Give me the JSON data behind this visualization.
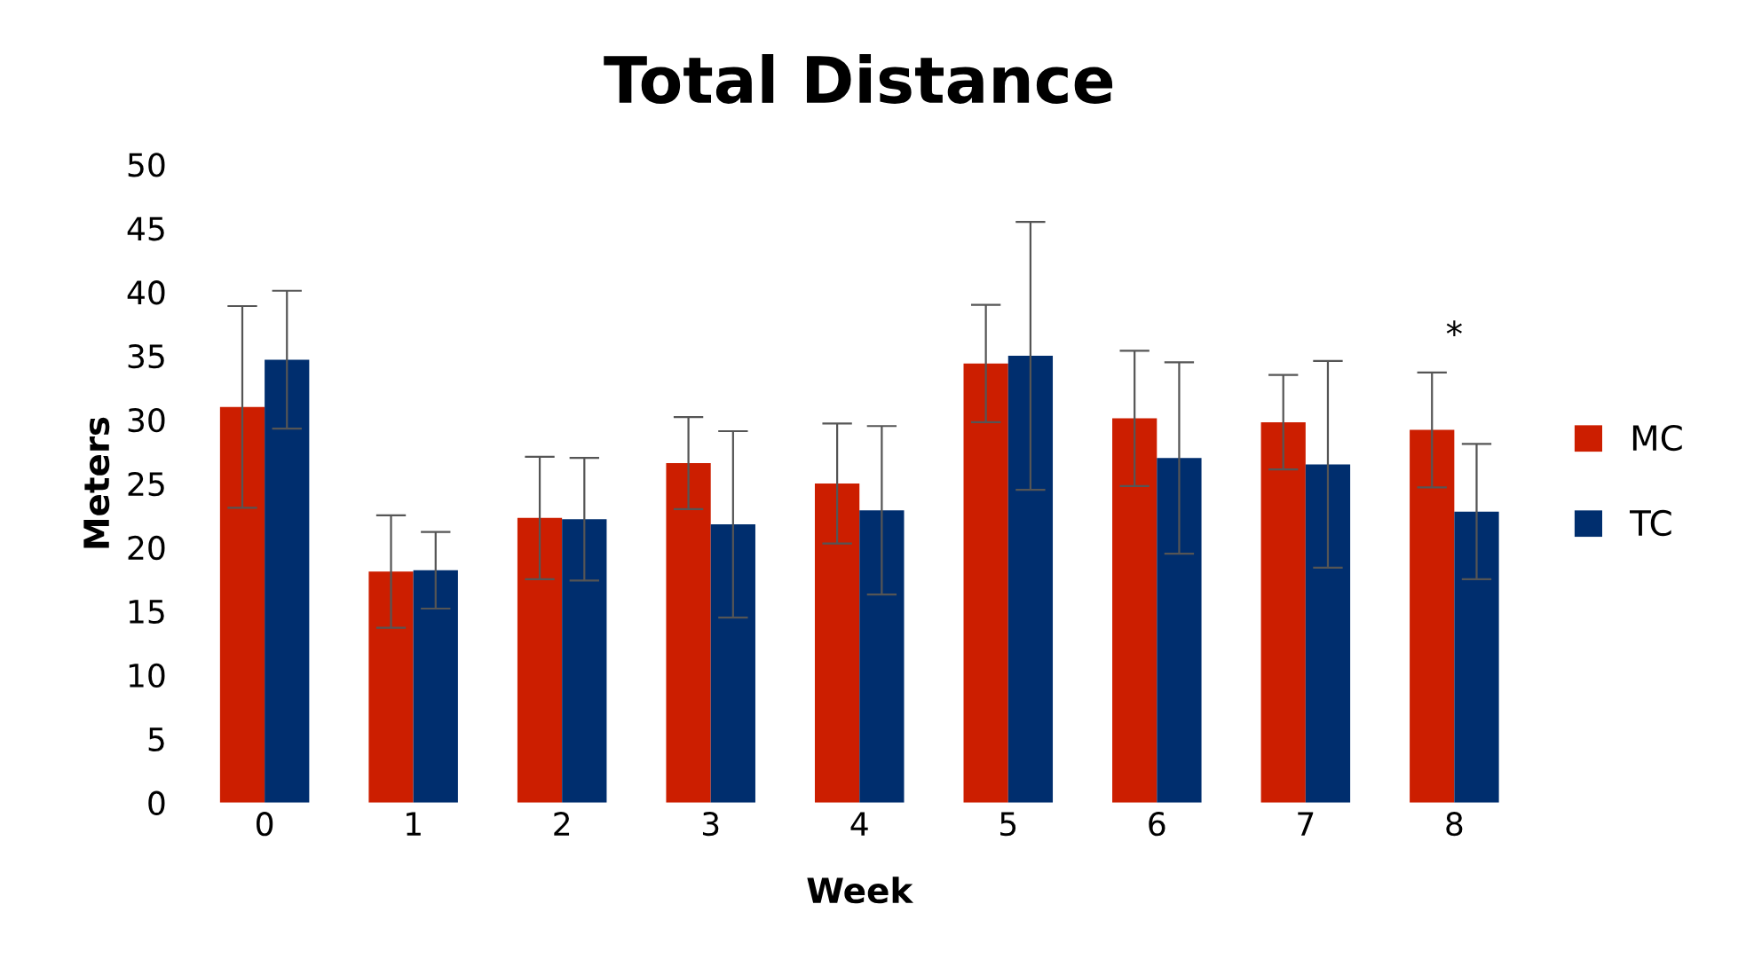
{
  "chart_data": {
    "type": "bar",
    "title": "Total Distance",
    "xlabel": "Week",
    "ylabel": "Meters",
    "categories": [
      "0",
      "1",
      "2",
      "3",
      "4",
      "5",
      "6",
      "7",
      "8"
    ],
    "series": [
      {
        "name": "MC",
        "color": "#cc1e00",
        "values": [
          31.0,
          18.1,
          22.3,
          26.6,
          25.0,
          34.4,
          30.1,
          29.8,
          29.2
        ],
        "errors": [
          7.9,
          4.4,
          4.8,
          3.6,
          4.7,
          4.6,
          5.3,
          3.7,
          4.5
        ]
      },
      {
        "name": "TC",
        "color": "#002e6e",
        "values": [
          34.7,
          18.2,
          22.2,
          21.8,
          22.9,
          35.0,
          27.0,
          26.5,
          22.8
        ],
        "errors": [
          5.4,
          3.0,
          4.8,
          7.3,
          6.6,
          10.5,
          7.5,
          8.1,
          5.3
        ]
      }
    ],
    "ylim": [
      0,
      50
    ],
    "yticks": [
      0,
      5,
      10,
      15,
      20,
      25,
      30,
      35,
      40,
      45,
      50
    ],
    "grid": false,
    "legend": "right",
    "annotations": [
      "*"
    ]
  }
}
